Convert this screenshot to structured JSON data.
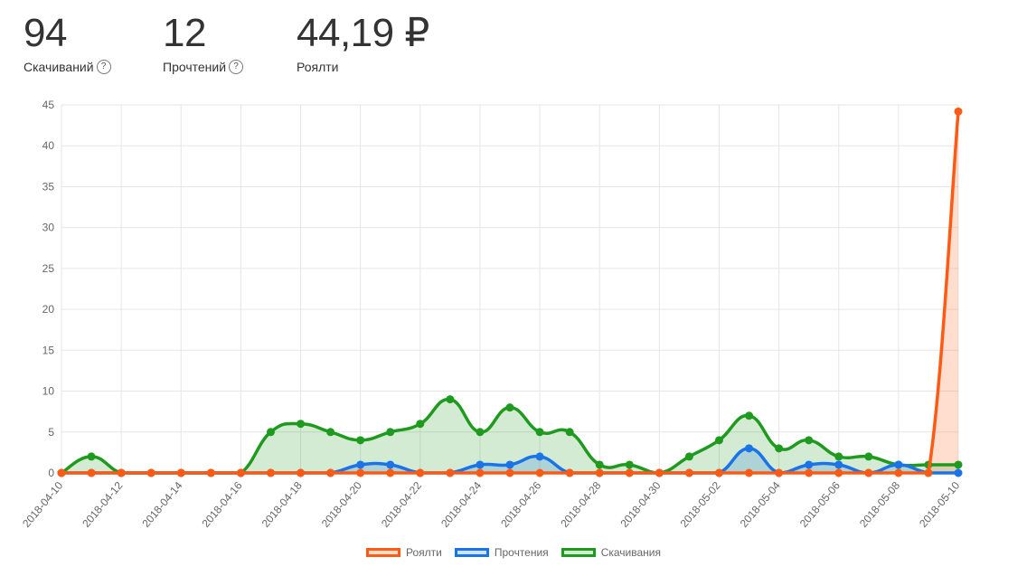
{
  "stats": [
    {
      "value": "94",
      "label": "Скачиваний",
      "help": "?"
    },
    {
      "value": "12",
      "label": "Прочтений",
      "help": "?"
    },
    {
      "value": "44,19 ₽",
      "label": "Роялти"
    }
  ],
  "colors": {
    "royalty": "#ff5a14",
    "reads": "#1a73e8",
    "downloads": "#1e9b1e"
  },
  "chart_data": {
    "type": "line",
    "fill": "area",
    "ylim": [
      0,
      45
    ],
    "yticks": [
      0,
      5,
      10,
      15,
      20,
      25,
      30,
      35,
      40,
      45
    ],
    "grid": true,
    "legend_position": "bottom",
    "x": [
      "2018-04-10",
      "2018-04-11",
      "2018-04-12",
      "2018-04-13",
      "2018-04-14",
      "2018-04-15",
      "2018-04-16",
      "2018-04-17",
      "2018-04-18",
      "2018-04-19",
      "2018-04-20",
      "2018-04-21",
      "2018-04-22",
      "2018-04-23",
      "2018-04-24",
      "2018-04-25",
      "2018-04-26",
      "2018-04-27",
      "2018-04-28",
      "2018-04-29",
      "2018-04-30",
      "2018-05-01",
      "2018-05-02",
      "2018-05-03",
      "2018-05-04",
      "2018-05-05",
      "2018-05-06",
      "2018-05-07",
      "2018-05-08",
      "2018-05-09",
      "2018-05-10"
    ],
    "xtick_labels": [
      "2018-04-10",
      "2018-04-12",
      "2018-04-14",
      "2018-04-16",
      "2018-04-18",
      "2018-04-20",
      "2018-04-22",
      "2018-04-24",
      "2018-04-26",
      "2018-04-28",
      "2018-04-30",
      "2018-05-02",
      "2018-05-04",
      "2018-05-06",
      "2018-05-08",
      "2018-05-10"
    ],
    "series": [
      {
        "name": "Роялти",
        "color": "#ff5a14",
        "values": [
          0,
          0,
          0,
          0,
          0,
          0,
          0,
          0,
          0,
          0,
          0,
          0,
          0,
          0,
          0,
          0,
          0,
          0,
          0,
          0,
          0,
          0,
          0,
          0,
          0,
          0,
          0,
          0,
          0,
          0,
          44.19
        ]
      },
      {
        "name": "Прочтения",
        "color": "#1a73e8",
        "values": [
          0,
          0,
          0,
          0,
          0,
          0,
          0,
          0,
          0,
          0,
          1,
          1,
          0,
          0,
          1,
          1,
          2,
          0,
          0,
          0,
          0,
          0,
          0,
          3,
          0,
          1,
          1,
          0,
          1,
          0,
          0
        ]
      },
      {
        "name": "Скачивания",
        "color": "#1e9b1e",
        "values": [
          0,
          2,
          0,
          0,
          0,
          0,
          0,
          5,
          6,
          5,
          4,
          5,
          6,
          9,
          5,
          8,
          5,
          5,
          1,
          1,
          0,
          2,
          4,
          7,
          3,
          4,
          2,
          2,
          1,
          1,
          1
        ]
      }
    ]
  }
}
